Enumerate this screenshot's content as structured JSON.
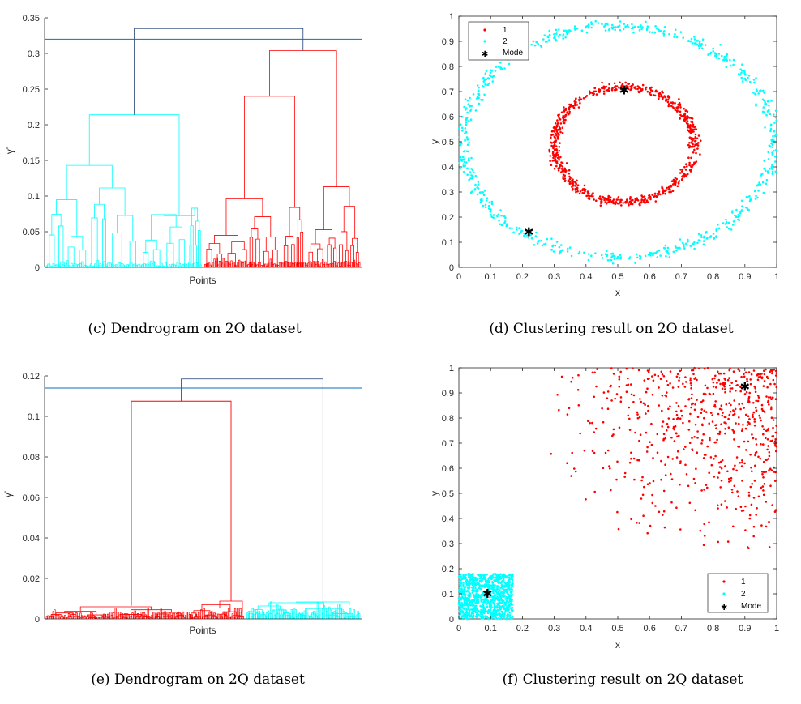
{
  "colors": {
    "cluster1": "#ff0000",
    "cluster2": "#00ffff",
    "cutline": "#0072bd",
    "link": "#1f3f73",
    "mode": "#000000",
    "axis": "#262626"
  },
  "chart_data": [
    {
      "id": "c",
      "type": "dendrogram",
      "caption": "(c) Dendrogram on 2O dataset",
      "xlabel": "Points",
      "ylabel": "γ'",
      "ylim": [
        0,
        0.35
      ],
      "yticks": [
        "0",
        "0.05",
        "0.1",
        "0.15",
        "0.2",
        "0.25",
        "0.3",
        "0.35"
      ],
      "cut_height": 0.32,
      "root_height": 0.335,
      "left_cluster": {
        "color": "cyan",
        "merge_height": 0.214,
        "sub_heights": [
          0.143,
          0.083,
          0.074
        ]
      },
      "right_cluster": {
        "color": "red",
        "merge_height": 0.304,
        "sub_heights": [
          0.24,
          0.113,
          0.092
        ]
      }
    },
    {
      "id": "d",
      "type": "scatter",
      "caption": "(d) Clustering result on 2O dataset",
      "xlabel": "x",
      "ylabel": "y",
      "xlim": [
        0,
        1
      ],
      "ylim": [
        0,
        1
      ],
      "xticks": [
        "0",
        "0.1",
        "0.2",
        "0.3",
        "0.4",
        "0.5",
        "0.6",
        "0.7",
        "0.8",
        "0.9",
        "1"
      ],
      "yticks": [
        "0",
        "0.1",
        "0.2",
        "0.3",
        "0.4",
        "0.5",
        "0.6",
        "0.7",
        "0.8",
        "0.9",
        "1"
      ],
      "legend": {
        "position": "top-left",
        "entries": [
          "1",
          "2",
          "Mode"
        ]
      },
      "series": [
        {
          "name": "1",
          "color": "red",
          "shape": "ring",
          "center": [
            0.52,
            0.49
          ],
          "radius": [
            0.22,
            0.23
          ],
          "width": 0.03,
          "count": 700
        },
        {
          "name": "2",
          "color": "cyan",
          "shape": "ring",
          "center": [
            0.5,
            0.5
          ],
          "radius": [
            0.49,
            0.46
          ],
          "width": 0.04,
          "count": 700
        }
      ],
      "modes": [
        [
          0.52,
          0.705
        ],
        [
          0.22,
          0.14
        ]
      ]
    },
    {
      "id": "e",
      "type": "dendrogram",
      "caption": "(e) Dendrogram on 2Q dataset",
      "xlabel": "Points",
      "ylabel": "γ'",
      "ylim": [
        0,
        0.12
      ],
      "yticks": [
        "0",
        "0.02",
        "0.04",
        "0.06",
        "0.08",
        "0.1",
        "0.12"
      ],
      "cut_height": 0.114,
      "root_height": 0.1185,
      "left_cluster": {
        "color": "red",
        "merge_height": 0.1075,
        "sub_heights": [
          0.0088,
          0.0065,
          0.006
        ]
      },
      "right_cluster": {
        "color": "cyan",
        "merge_height": 0.0088,
        "sub_heights": [
          0.008,
          0.007,
          0.0065
        ]
      }
    },
    {
      "id": "f",
      "type": "scatter",
      "caption": "(f) Clustering result on 2Q dataset",
      "xlabel": "x",
      "ylabel": "y",
      "xlim": [
        0,
        1
      ],
      "ylim": [
        0,
        1
      ],
      "xticks": [
        "0",
        "0.1",
        "0.2",
        "0.3",
        "0.4",
        "0.5",
        "0.6",
        "0.7",
        "0.8",
        "0.9",
        "1"
      ],
      "yticks": [
        "0",
        "0.1",
        "0.2",
        "0.3",
        "0.4",
        "0.5",
        "0.6",
        "0.7",
        "0.8",
        "0.9",
        "1"
      ],
      "legend": {
        "position": "bottom-right",
        "entries": [
          "1",
          "2",
          "Mode"
        ]
      },
      "series": [
        {
          "name": "1",
          "color": "red",
          "shape": "square-gradient",
          "x": [
            0.27,
            1.0
          ],
          "y": [
            0.27,
            1.0
          ],
          "count": 650
        },
        {
          "name": "2",
          "color": "cyan",
          "shape": "square",
          "x": [
            0.0,
            0.17
          ],
          "y": [
            0.0,
            0.18
          ],
          "count": 900
        }
      ],
      "modes": [
        [
          0.09,
          0.1
        ],
        [
          0.9,
          0.925
        ]
      ]
    }
  ]
}
